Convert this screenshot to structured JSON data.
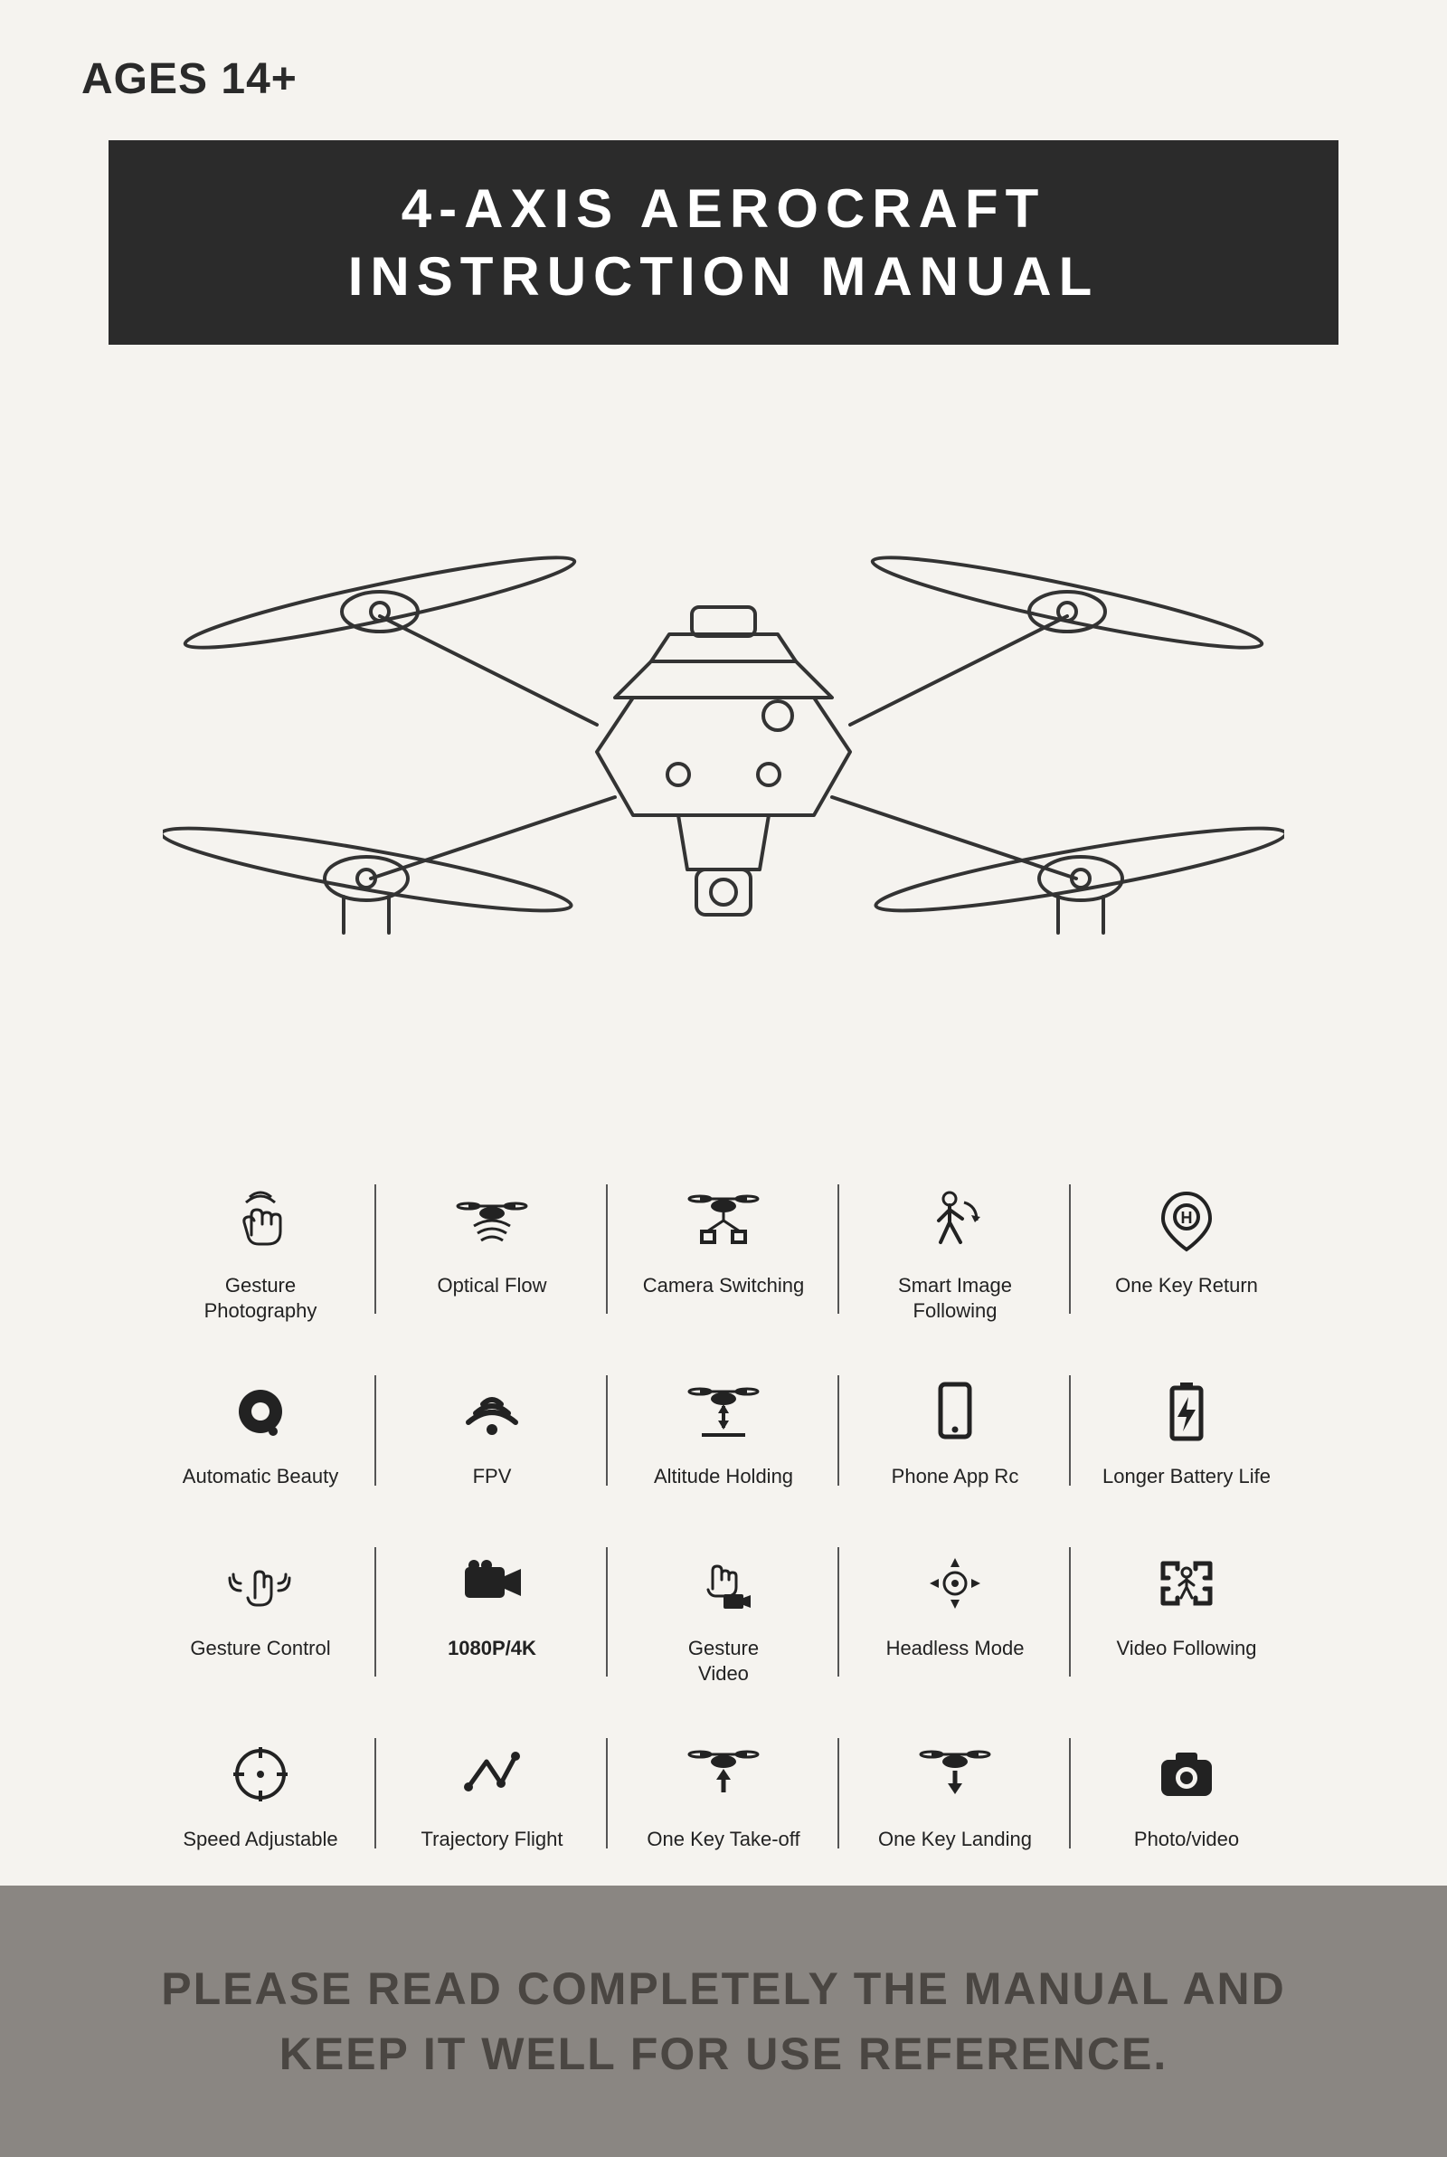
{
  "age_label": "AGES 14+",
  "title_line1": "4-AXIS AEROCRAFT",
  "title_line2": "INSTRUCTION MANUAL",
  "colors": {
    "page_bg": "#f5f3ef",
    "banner_bg": "#2b2b2b",
    "banner_text": "#ffffff",
    "footer_bg": "#8a8682",
    "footer_text": "#4a4642",
    "ink": "#222222",
    "divider": "#555555"
  },
  "typography": {
    "title_fontsize": 60,
    "title_letter_spacing": 8,
    "age_fontsize": 48,
    "feature_label_fontsize": 22,
    "footer_fontsize": 50
  },
  "drone_figure": {
    "description": "Line-art quadcopter drone, front-angled view, four propellers, camera gimbal underneath"
  },
  "features": [
    {
      "icon": "gesture-photo",
      "label": "Gesture\nPhotography"
    },
    {
      "icon": "optical-flow",
      "label": "Optical Flow"
    },
    {
      "icon": "camera-switch",
      "label": "Camera Switching"
    },
    {
      "icon": "smart-follow",
      "label": "Smart Image\nFollowing"
    },
    {
      "icon": "one-key-return",
      "label": "One Key Return"
    },
    {
      "icon": "auto-beauty",
      "label": "Automatic Beauty"
    },
    {
      "icon": "fpv",
      "label": "FPV"
    },
    {
      "icon": "altitude-hold",
      "label": "Altitude Holding"
    },
    {
      "icon": "phone-app",
      "label": "Phone App Rc"
    },
    {
      "icon": "battery",
      "label": "Longer Battery Life"
    },
    {
      "icon": "gesture-control",
      "label": "Gesture Control"
    },
    {
      "icon": "resolution",
      "label": "1080P/4K",
      "bold": true
    },
    {
      "icon": "gesture-video",
      "label": "Gesture\nVideo"
    },
    {
      "icon": "headless",
      "label": "Headless Mode"
    },
    {
      "icon": "video-follow",
      "label": "Video Following"
    },
    {
      "icon": "speed-adjust",
      "label": "Speed Adjustable"
    },
    {
      "icon": "trajectory",
      "label": "Trajectory Flight"
    },
    {
      "icon": "takeoff",
      "label": "One Key Take-off"
    },
    {
      "icon": "landing",
      "label": "One Key Landing"
    },
    {
      "icon": "photo-video",
      "label": "Photo/video"
    }
  ],
  "footer_line1": "PLEASE READ COMPLETELY THE MANUAL AND",
  "footer_line2": "KEEP IT WELL FOR USE REFERENCE."
}
